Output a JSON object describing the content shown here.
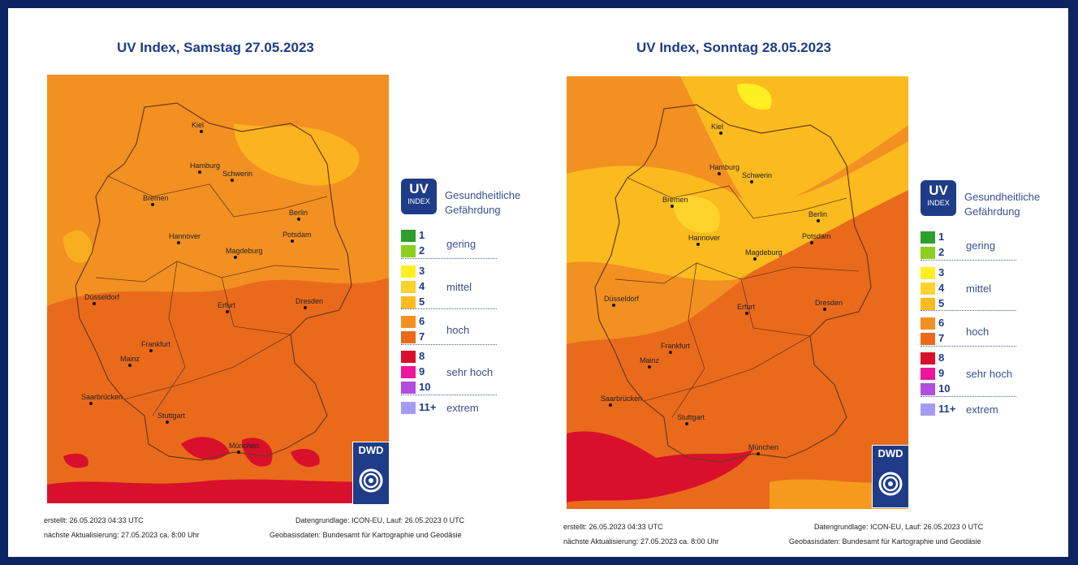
{
  "panels": [
    {
      "title": "UV Index, Samstag 27.05.2023",
      "footer": {
        "created": "erstellt: 26.05.2023 04:33 UTC",
        "next_update": "nächste Aktualisierung:  27.05.2023 ca. 8:00 Uhr",
        "data_basis": "Datengrundlage: ICON-EU, Lauf: 26.05.2023 0 UTC",
        "geo_basis": "Geobasisdaten: Bundesamt für Kartographie und Geodäsie"
      }
    },
    {
      "title": "UV Index, Sonntag 28.05.2023",
      "footer": {
        "created": "erstellt: 26.05.2023 04:33 UTC",
        "next_update": "nächste Aktualisierung:  27.05.2023 ca. 8:00 Uhr",
        "data_basis": "Datengrundlage: ICON-EU, Lauf: 26.05.2023 0 UTC",
        "geo_basis": "Geobasisdaten: Bundesamt für Kartographie und Geodäsie"
      }
    }
  ],
  "legend": {
    "badge_top": "UV",
    "badge_bottom": "INDEX",
    "heading": "Gesundheitliche\nGefährdung",
    "levels": [
      {
        "label": "1",
        "color": "#2e9e2e"
      },
      {
        "label": "2",
        "color": "#8ccf1e"
      },
      {
        "label": "3",
        "color": "#ffee22"
      },
      {
        "label": "4",
        "color": "#fdd22a"
      },
      {
        "label": "5",
        "color": "#fbbb1e"
      },
      {
        "label": "6",
        "color": "#f39022"
      },
      {
        "label": "7",
        "color": "#ea6a1c"
      },
      {
        "label": "8",
        "color": "#d8102c"
      },
      {
        "label": "9",
        "color": "#f0169a"
      },
      {
        "label": "10",
        "color": "#b24de0"
      },
      {
        "label": "11+",
        "color": "#a49cf4"
      }
    ],
    "categories": [
      "gering",
      "mittel",
      "hoch",
      "sehr hoch",
      "extrem"
    ]
  },
  "logo": "DWD",
  "cities": [
    "Kiel",
    "Hamburg",
    "Schwerin",
    "Bremen",
    "Berlin",
    "Potsdam",
    "Hannover",
    "Magdeburg",
    "Düsseldorf",
    "Dresden",
    "Erfurt",
    "Frankfurt",
    "Mainz",
    "Saarbrücken",
    "Stuttgart",
    "München"
  ]
}
